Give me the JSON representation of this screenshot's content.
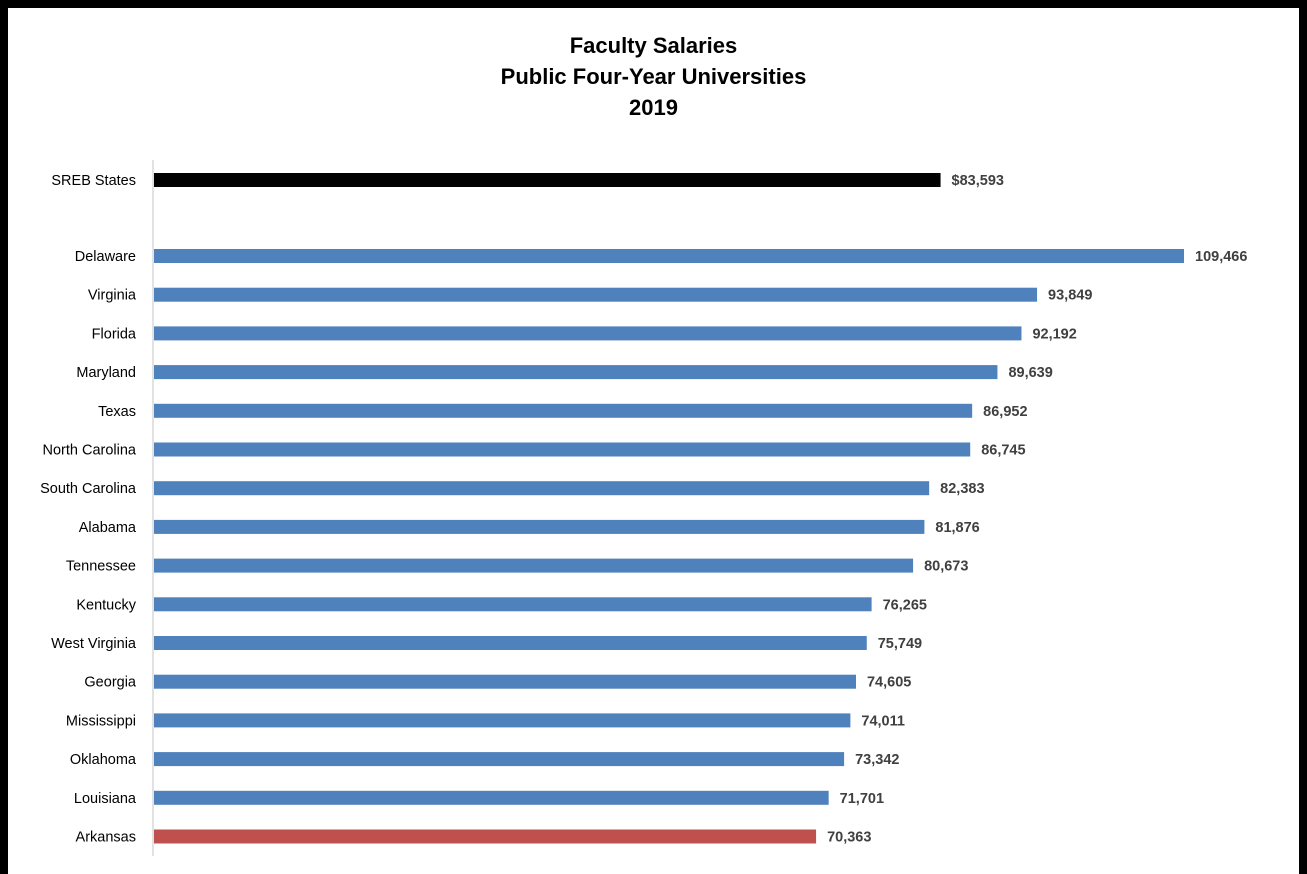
{
  "chart_data": {
    "type": "bar",
    "orientation": "horizontal",
    "title_lines": [
      "Faculty Salaries",
      "Public Four-Year Universities",
      "2019"
    ],
    "xlabel": "",
    "ylabel": "",
    "xlim": [
      0,
      109466
    ],
    "grid": false,
    "legend": "none",
    "colors": {
      "summary": "#000000",
      "default": "#4F81BD",
      "highlight": "#C0504D",
      "value_label": "#404040",
      "axis_line": "#D9D9D9"
    },
    "categories": [
      "SREB States",
      "Delaware",
      "Virginia",
      "Florida",
      "Maryland",
      "Texas",
      "North Carolina",
      "South Carolina",
      "Alabama",
      "Tennessee",
      "Kentucky",
      "West Virginia",
      "Georgia",
      "Mississippi",
      "Oklahoma",
      "Louisiana",
      "Arkansas"
    ],
    "values": [
      83593,
      109466,
      93849,
      92192,
      89639,
      86952,
      86745,
      82383,
      81876,
      80673,
      76265,
      75749,
      74605,
      74011,
      73342,
      71701,
      70363
    ],
    "value_labels": [
      "$83,593",
      "109,466",
      "93,849",
      "92,192",
      "89,639",
      "86,952",
      "86,745",
      "82,383",
      "81,876",
      "80,673",
      "76,265",
      "75,749",
      "74,605",
      "74,011",
      "73,342",
      "71,701",
      "70,363"
    ],
    "bar_color_keys": [
      "summary",
      "default",
      "default",
      "default",
      "default",
      "default",
      "default",
      "default",
      "default",
      "default",
      "default",
      "default",
      "default",
      "default",
      "default",
      "default",
      "highlight"
    ]
  }
}
